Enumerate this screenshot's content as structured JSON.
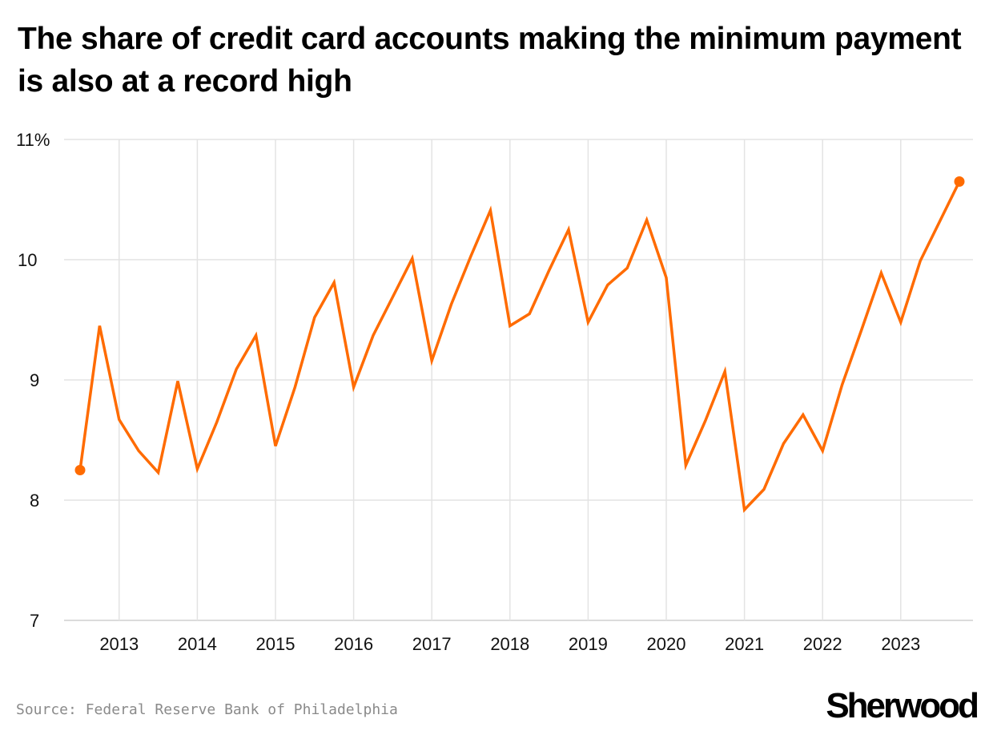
{
  "chart_data": {
    "type": "line",
    "title": "The share of credit card accounts making the minimum payment is also at a record high",
    "xlabel": "",
    "ylabel": "",
    "ylim": [
      7,
      11
    ],
    "yticks": [
      7,
      8,
      9,
      10,
      11
    ],
    "ytick_labels": [
      "7",
      "8",
      "9",
      "10",
      "11%"
    ],
    "xtick_labels": [
      "2013",
      "2014",
      "2015",
      "2016",
      "2017",
      "2018",
      "2019",
      "2020",
      "2021",
      "2022",
      "2023"
    ],
    "x_start": "2012 Q3",
    "x_step": "quarter",
    "grid": true,
    "color": "#FF6B00",
    "series": [
      {
        "name": "Share of accounts making minimum payment (%)",
        "values": [
          8.25,
          9.45,
          8.67,
          8.41,
          8.23,
          8.99,
          8.26,
          8.65,
          9.09,
          9.37,
          8.45,
          8.94,
          9.52,
          9.81,
          8.94,
          9.37,
          9.69,
          10.01,
          9.16,
          9.63,
          10.03,
          10.41,
          9.45,
          9.55,
          9.91,
          10.25,
          9.48,
          9.79,
          9.93,
          10.33,
          9.85,
          8.29,
          8.66,
          9.07,
          7.92,
          8.09,
          8.47,
          8.71,
          8.41,
          8.96,
          9.42,
          9.89,
          9.48,
          9.99,
          10.32,
          10.65
        ]
      }
    ]
  },
  "source": "Source: Federal Reserve Bank of Philadelphia",
  "logo": "Sherwood"
}
